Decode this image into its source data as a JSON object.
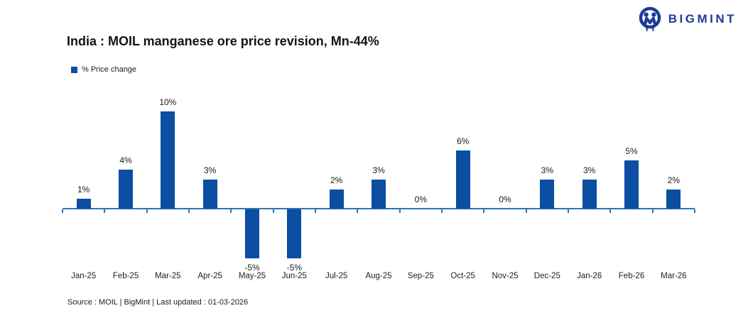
{
  "logo": {
    "text": "BIGMINT",
    "color": "#1C3D96"
  },
  "header": {
    "title": "India : MOIL manganese ore price revision, Mn-44%"
  },
  "legend": {
    "label": "% Price change"
  },
  "footer": {
    "source_line": "Source : MOIL | BigMint | Last updated : 01-03-2026"
  },
  "chart_data": {
    "type": "bar",
    "title": "India : MOIL manganese ore price revision, Mn-44%",
    "series_name": "% Price change",
    "categories": [
      "Jan-25",
      "Feb-25",
      "Mar-25",
      "Apr-25",
      "May-25",
      "Jun-25",
      "Jul-25",
      "Aug-25",
      "Sep-25",
      "Oct-25",
      "Nov-25",
      "Dec-25",
      "Jan-26",
      "Feb-26",
      "Mar-26"
    ],
    "values": [
      1,
      4,
      10,
      3,
      -5,
      -5,
      2,
      3,
      0,
      6,
      0,
      3,
      3,
      5,
      2
    ],
    "data_labels": [
      "1%",
      "4%",
      "10%",
      "3%",
      "-5%",
      "-5%",
      "2%",
      "3%",
      "0%",
      "6%",
      "0%",
      "3%",
      "3%",
      "5%",
      "2%"
    ],
    "ylim": [
      -6,
      11
    ],
    "grid": false,
    "y_axis_visible": false,
    "legend_position": "top-left",
    "colors": {
      "bar": "#0B4EA2",
      "axis": "#2E75B6",
      "label": "#1A1A1A"
    }
  }
}
